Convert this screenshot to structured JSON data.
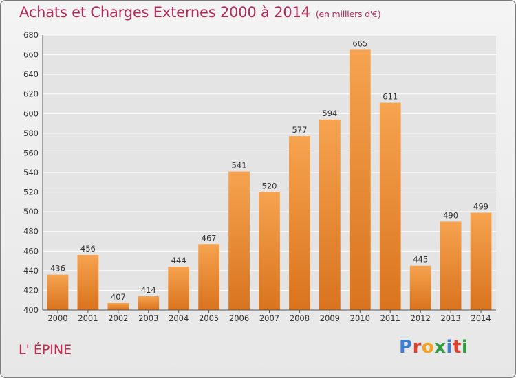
{
  "header": {
    "title": "Achats et Charges Externes 2000 à 2014",
    "subtitle": "(en milliers d'€)"
  },
  "footer": {
    "commune": "L' ÉPINE",
    "brand": "Proxiti"
  },
  "colors": {
    "bar_light": "#f6a34f",
    "bar_dark": "#d9731e",
    "title": "#b52a55",
    "grid": "#ffffff",
    "plot_bg": "#e4e4e4"
  },
  "chart_data": {
    "type": "bar",
    "title": "Achats et Charges Externes 2000 à 2014",
    "subtitle": "(en milliers d'€)",
    "xlabel": "",
    "ylabel": "",
    "categories": [
      "2000",
      "2001",
      "2002",
      "2003",
      "2004",
      "2005",
      "2006",
      "2007",
      "2008",
      "2009",
      "2010",
      "2011",
      "2012",
      "2013",
      "2014"
    ],
    "values": [
      436,
      456,
      407,
      414,
      444,
      467,
      541,
      520,
      577,
      594,
      665,
      611,
      445,
      490,
      499
    ],
    "ylim": [
      400,
      680
    ],
    "yticks": [
      400,
      420,
      440,
      460,
      480,
      500,
      520,
      540,
      560,
      580,
      600,
      620,
      640,
      660,
      680
    ],
    "grid": true,
    "legend": "none"
  }
}
